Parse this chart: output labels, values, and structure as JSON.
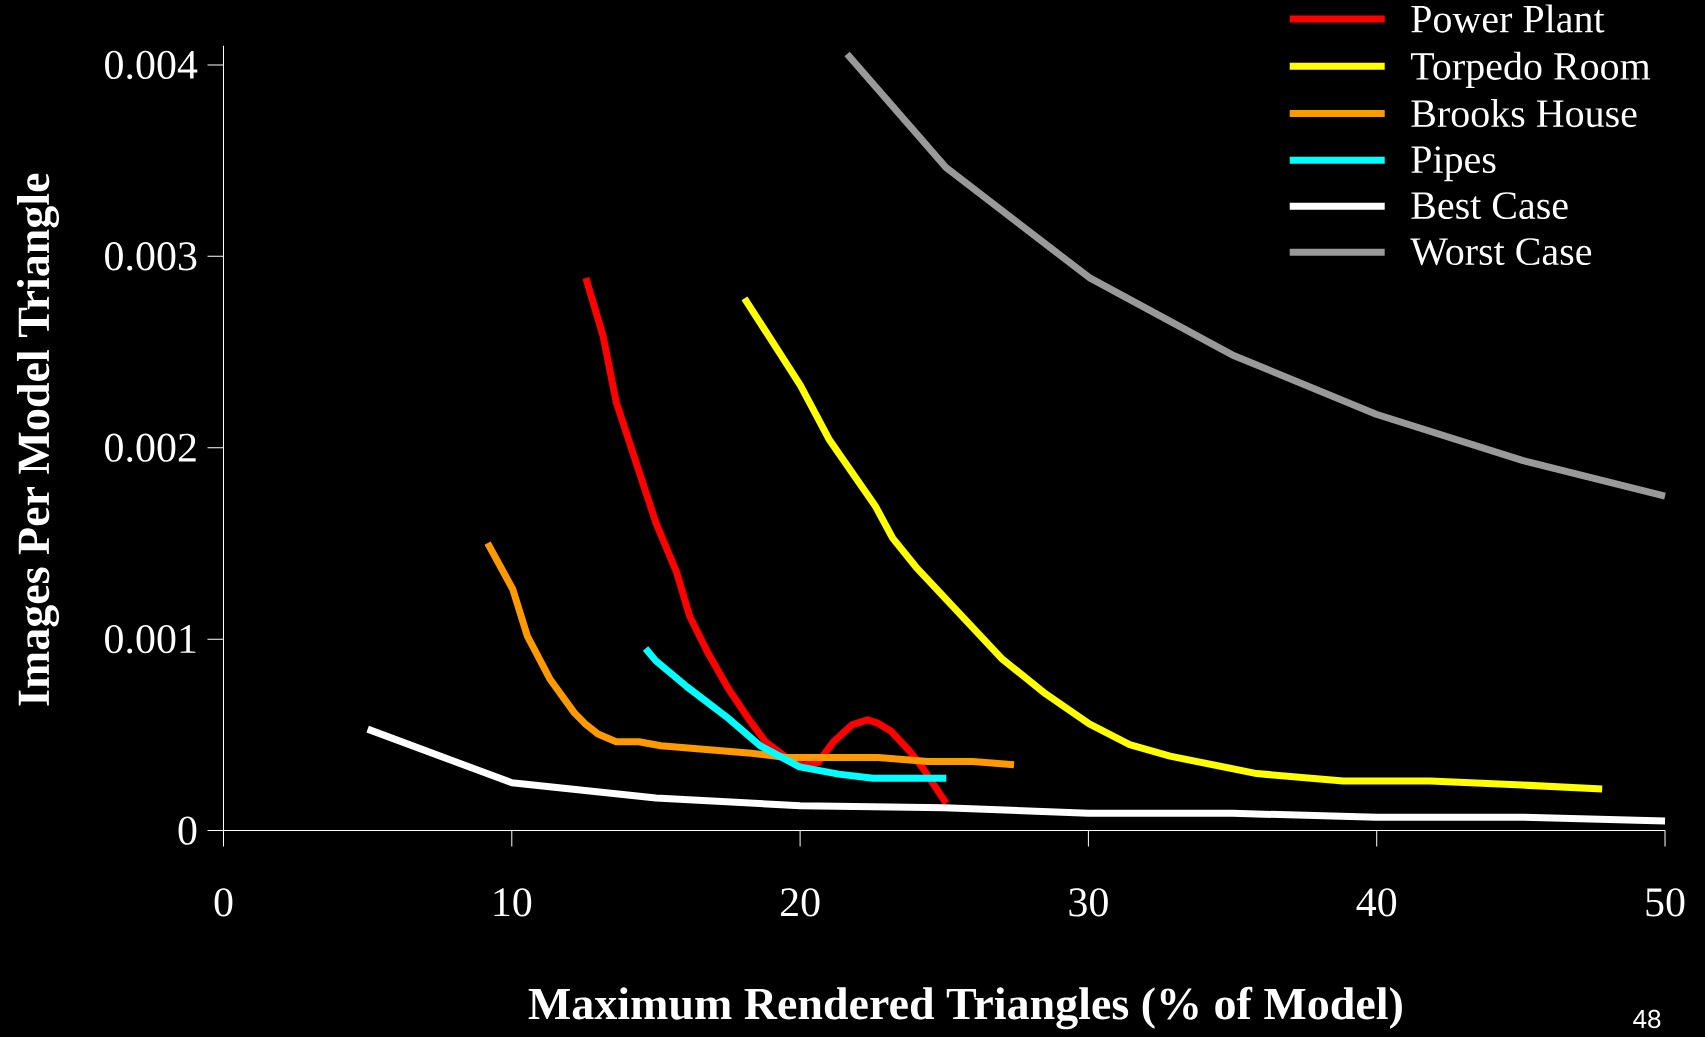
{
  "chart_data": {
    "type": "line",
    "xlabel": "Maximum Rendered Triangles (% of Model)",
    "ylabel": "Images Per Model Triangle",
    "xlim": [
      0,
      50
    ],
    "ylim": [
      0,
      0.0041
    ],
    "xticks": [
      0,
      10,
      20,
      30,
      40,
      50
    ],
    "yticks": [
      0,
      0.001,
      0.002,
      0.003,
      0.004
    ],
    "grid": false,
    "legend": "top right",
    "marker": "none",
    "line_style": "solid",
    "annotations": [
      "48"
    ],
    "series": [
      {
        "name": "Power Plant",
        "color": "#ff0000",
        "x": [
          12.57,
          13.17,
          13.62,
          14.99,
          15.71,
          16.17,
          16.8,
          17.53,
          18.26,
          18.8,
          19.53,
          20.07,
          20.62,
          21.16,
          21.8,
          22.34,
          22.71,
          23.16,
          23.8,
          24.25,
          25.07
        ],
        "values": [
          0.002887,
          0.002581,
          0.00224,
          0.001612,
          0.001352,
          0.00112,
          0.000929,
          0.000737,
          0.000574,
          0.000464,
          0.000382,
          0.000341,
          0.000355,
          0.000464,
          0.000552,
          0.000579,
          0.00056,
          0.000519,
          0.000415,
          0.000328,
          0.000142
        ]
      },
      {
        "name": "Torpedo Room",
        "color": "#ffff00",
        "x": [
          18.07,
          20.01,
          21.02,
          22.62,
          23.21,
          24.02,
          27.02,
          28.52,
          30.03,
          31.43,
          32.83,
          35.84,
          38.84,
          41.85,
          45.05,
          47.82
        ],
        "values": [
          0.002781,
          0.002326,
          0.00204,
          0.001693,
          0.001528,
          0.001377,
          0.000895,
          0.000714,
          0.000557,
          0.000449,
          0.000389,
          0.000298,
          0.000259,
          0.000259,
          0.000238,
          0.000217
        ]
      },
      {
        "name": "Brooks House",
        "color": "#ff9900",
        "x": [
          9.16,
          10.03,
          10.54,
          11.32,
          12.17,
          12.53,
          12.99,
          13.62,
          14.41,
          15.17,
          18.31,
          19.53,
          20.98,
          22.71,
          24.43,
          25.98,
          27.42
        ],
        "values": [
          0.001502,
          0.001262,
          0.001016,
          0.000792,
          0.000615,
          0.00056,
          0.000505,
          0.000464,
          0.000464,
          0.000443,
          0.000404,
          0.000382,
          0.000382,
          0.000382,
          0.000361,
          0.000361,
          0.000344
        ]
      },
      {
        "name": "Pipes",
        "color": "#00ffff",
        "x": [
          14.64,
          14.99,
          16.08,
          17.44,
          18.62,
          19.98,
          21.34,
          22.53,
          25.07
        ],
        "values": [
          0.000951,
          0.000888,
          0.000751,
          0.000595,
          0.000443,
          0.000333,
          0.000295,
          0.000273,
          0.000273
        ]
      },
      {
        "name": "Best Case",
        "color": "#ffffff",
        "x": [
          5,
          10,
          15,
          20,
          25,
          30,
          35,
          40,
          45,
          50
        ],
        "values": [
          0.00053,
          0.00025,
          0.00017,
          0.00013,
          0.00012,
          9e-05,
          9e-05,
          7e-05,
          7e-05,
          5e-05
        ]
      },
      {
        "name": "Worst Case",
        "color": "#999999",
        "x": [
          21.63,
          25.06,
          30.03,
          34.99,
          39.98,
          45.05,
          50
        ],
        "values": [
          0.004057,
          0.003464,
          0.002889,
          0.002485,
          0.002175,
          0.001934,
          0.001747
        ]
      }
    ]
  }
}
